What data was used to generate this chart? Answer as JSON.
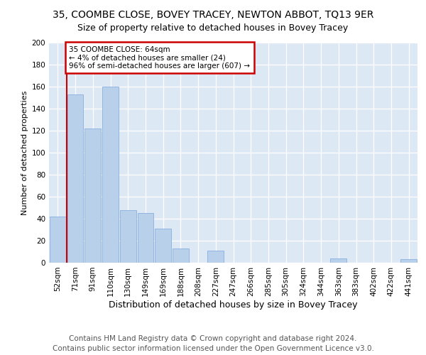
{
  "title": "35, COOMBE CLOSE, BOVEY TRACEY, NEWTON ABBOT, TQ13 9ER",
  "subtitle": "Size of property relative to detached houses in Bovey Tracey",
  "xlabel": "Distribution of detached houses by size in Bovey Tracey",
  "ylabel": "Number of detached properties",
  "categories": [
    "52sqm",
    "71sqm",
    "91sqm",
    "110sqm",
    "130sqm",
    "149sqm",
    "169sqm",
    "188sqm",
    "208sqm",
    "227sqm",
    "247sqm",
    "266sqm",
    "285sqm",
    "305sqm",
    "324sqm",
    "344sqm",
    "363sqm",
    "383sqm",
    "402sqm",
    "422sqm",
    "441sqm"
  ],
  "values": [
    42,
    153,
    122,
    160,
    48,
    45,
    31,
    13,
    0,
    11,
    0,
    0,
    0,
    0,
    0,
    0,
    4,
    0,
    0,
    0,
    3
  ],
  "bar_color": "#b8d0ea",
  "bar_edge_color": "#8aafe0",
  "annotation_text": "35 COOMBE CLOSE: 64sqm\n← 4% of detached houses are smaller (24)\n96% of semi-detached houses are larger (607) →",
  "annotation_box_color": "#ffffff",
  "annotation_box_edge": "#cc0000",
  "subject_line_color": "#cc0000",
  "ylim": [
    0,
    200
  ],
  "yticks": [
    0,
    20,
    40,
    60,
    80,
    100,
    120,
    140,
    160,
    180,
    200
  ],
  "bg_color": "#dde8f5",
  "footer_line1": "Contains HM Land Registry data © Crown copyright and database right 2024.",
  "footer_line2": "Contains public sector information licensed under the Open Government Licence v3.0.",
  "title_fontsize": 10,
  "subtitle_fontsize": 9,
  "ylabel_fontsize": 8,
  "xlabel_fontsize": 9,
  "footer_fontsize": 7.5,
  "tick_fontsize": 7.5
}
